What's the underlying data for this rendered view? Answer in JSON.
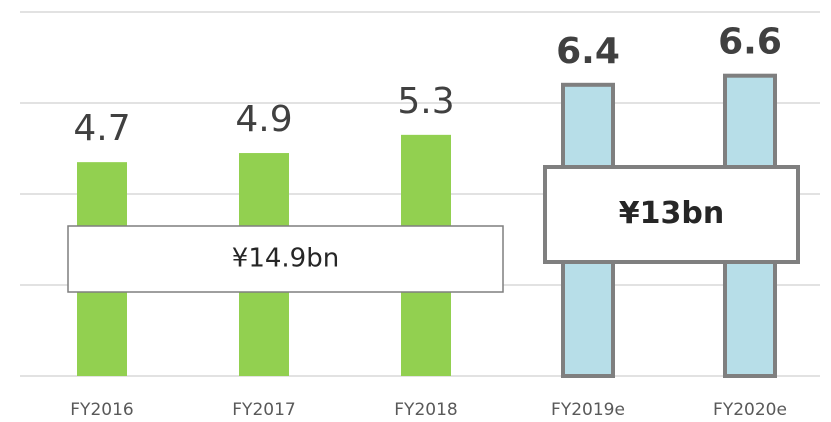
{
  "chart_data": {
    "type": "bar",
    "categories": [
      "FY2016",
      "FY2017",
      "FY2018",
      "FY2019e",
      "FY2020e"
    ],
    "series": [
      {
        "color": "#92d050",
        "values": [
          4.7,
          4.9,
          5.3,
          null,
          null
        ]
      },
      {
        "color": "#b7dee8",
        "outline": "#7f7f7f",
        "label_bold": true,
        "values": [
          null,
          null,
          null,
          6.4,
          6.6
        ]
      }
    ],
    "ylim": [
      0,
      8
    ],
    "yticks": [
      0,
      2,
      4,
      6,
      8
    ],
    "grid": true,
    "annotations": [
      {
        "text": "¥14.9bn"
      },
      {
        "text": "¥13bn",
        "bold": true
      }
    ]
  }
}
